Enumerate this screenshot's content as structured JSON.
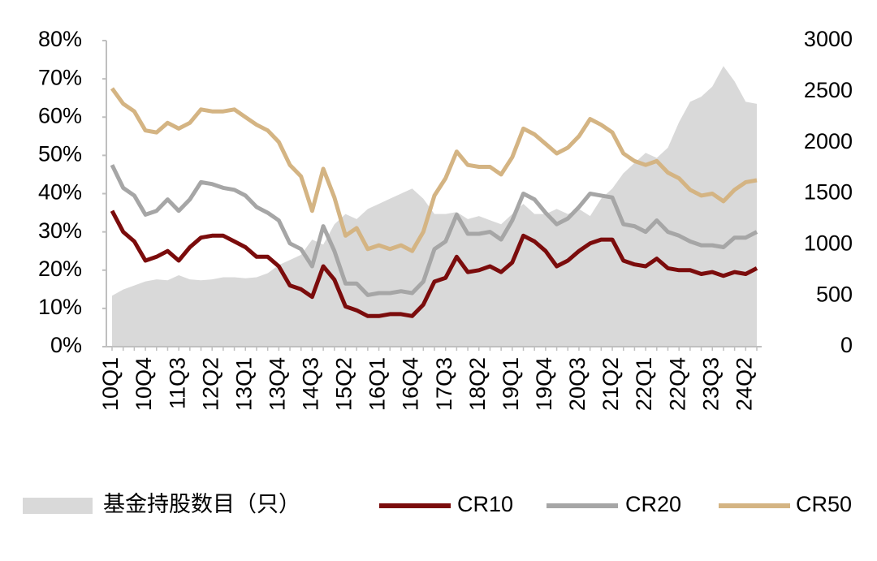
{
  "chart_data": {
    "type": "line",
    "categories": [
      "10Q1",
      null,
      null,
      "10Q4",
      null,
      null,
      "11Q3",
      null,
      null,
      "12Q2",
      null,
      null,
      "13Q1",
      null,
      null,
      "13Q4",
      null,
      null,
      "14Q3",
      null,
      null,
      "15Q2",
      null,
      null,
      "16Q1",
      null,
      null,
      "16Q4",
      null,
      null,
      "17Q3",
      null,
      null,
      "18Q2",
      null,
      null,
      "19Q1",
      null,
      null,
      "19Q4",
      null,
      null,
      "20Q3",
      null,
      null,
      "21Q2",
      null,
      null,
      "22Q1",
      null,
      null,
      "22Q4",
      null,
      null,
      "23Q3",
      null,
      null,
      "24Q2",
      null
    ],
    "series": [
      {
        "name": "基金持股数目（只）",
        "type": "area",
        "axis": "y2",
        "color": "#d9d9d9",
        "values": [
          500,
          560,
          600,
          640,
          660,
          650,
          700,
          660,
          650,
          660,
          680,
          680,
          670,
          680,
          720,
          800,
          850,
          900,
          1050,
          1000,
          1200,
          1300,
          1250,
          1350,
          1400,
          1450,
          1500,
          1550,
          1450,
          1300,
          1300,
          1320,
          1250,
          1280,
          1240,
          1200,
          1300,
          1400,
          1300,
          1300,
          1350,
          1300,
          1350,
          1280,
          1450,
          1550,
          1700,
          1800,
          1900,
          1850,
          1950,
          2200,
          2400,
          2450,
          2550,
          2750,
          2600,
          2400,
          2380
        ]
      },
      {
        "name": "CR10",
        "color": "#7b0c0c",
        "values": [
          35.5,
          30,
          27.5,
          22.5,
          23.5,
          25,
          22.5,
          26,
          28.5,
          29,
          29,
          27.5,
          26,
          23.5,
          23.5,
          21,
          16,
          15,
          13,
          21,
          17.5,
          10.5,
          9.5,
          8,
          8,
          8.5,
          8.5,
          8,
          11,
          17,
          18,
          23.5,
          19.5,
          20,
          21,
          19.5,
          22,
          29,
          27.5,
          25,
          21,
          22.5,
          25,
          27,
          28,
          28,
          22.5,
          21.5,
          21,
          23,
          20.5,
          20,
          20,
          19,
          19.5,
          18.5,
          19.5,
          19,
          20.5
        ]
      },
      {
        "name": "CR20",
        "color": "#a6a6a6",
        "values": [
          47.5,
          41.5,
          39.5,
          34.5,
          35.5,
          38.5,
          35.5,
          38.5,
          43,
          42.5,
          41.5,
          41,
          39.5,
          36.5,
          35,
          33,
          27,
          25.5,
          21,
          31.5,
          25,
          16.5,
          16.5,
          13.5,
          14,
          14,
          14.5,
          14,
          17,
          25.5,
          27.5,
          34.5,
          29.5,
          29.5,
          30,
          28,
          33,
          40,
          38.5,
          35,
          32,
          33.5,
          36.5,
          40,
          39.5,
          39,
          32,
          31.5,
          30,
          33,
          30,
          29,
          27.5,
          26.5,
          26.5,
          26,
          28.5,
          28.5,
          30
        ]
      },
      {
        "name": "CR50",
        "color": "#d4b483",
        "values": [
          67.5,
          63.5,
          61.5,
          56.5,
          56,
          58.5,
          57,
          58.5,
          62,
          61.5,
          61.5,
          62,
          60,
          58,
          56.5,
          53.5,
          47.5,
          44.5,
          35.5,
          46.5,
          39,
          29,
          31,
          25.5,
          26.5,
          25.5,
          26.5,
          25,
          30,
          39.5,
          44,
          51,
          47.5,
          47,
          47,
          45,
          49.5,
          57,
          55.5,
          53,
          50.5,
          52,
          55,
          59.5,
          58,
          56,
          50.5,
          48.5,
          47.5,
          48.5,
          45.5,
          44,
          41,
          39.5,
          40,
          38,
          41,
          43,
          43.5
        ]
      }
    ],
    "ylim": [
      0,
      80
    ],
    "yticks": [
      {
        "value": 0,
        "label": "0%"
      },
      {
        "value": 10,
        "label": "10%"
      },
      {
        "value": 20,
        "label": "20%"
      },
      {
        "value": 30,
        "label": "30%"
      },
      {
        "value": 40,
        "label": "40%"
      },
      {
        "value": 50,
        "label": "50%"
      },
      {
        "value": 60,
        "label": "60%"
      },
      {
        "value": 70,
        "label": "70%"
      },
      {
        "value": 80,
        "label": "80%"
      }
    ],
    "y2lim": [
      0,
      3000
    ],
    "y2ticks": [
      0,
      500,
      1000,
      1500,
      2000,
      2500,
      3000
    ],
    "legend": "bottom"
  }
}
